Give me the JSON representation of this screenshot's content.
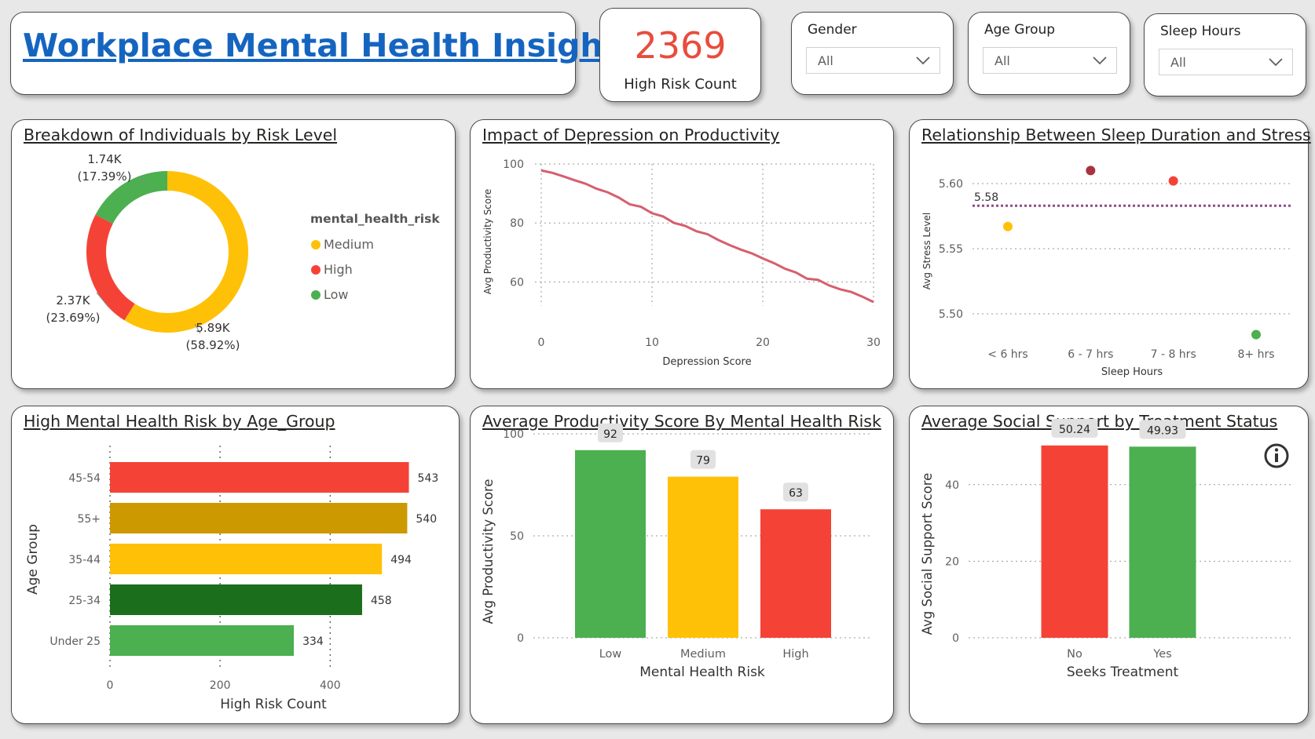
{
  "header": {
    "title": "Workplace Mental Health Insights"
  },
  "kpi": {
    "value": "2369",
    "label": "High Risk Count",
    "color": "#e84c3d"
  },
  "filters": [
    {
      "label": "Gender",
      "value": "All"
    },
    {
      "label": "Age Group",
      "value": "All"
    },
    {
      "label": "Sleep Hours",
      "value": "All"
    }
  ],
  "colors": {
    "low": "#4caf50",
    "medium": "#ffc107",
    "high": "#f44336",
    "dark_gold": "#cc9900",
    "dark_green": "#1b6e1b",
    "line": "#d65f6e"
  },
  "chart_data": [
    {
      "id": "donut",
      "type": "pie",
      "title": "Breakdown of Individuals by Risk Level",
      "legend_title": "mental_health_risk",
      "legend": [
        "Medium",
        "High",
        "Low"
      ],
      "slices": [
        {
          "name": "Medium",
          "value": 5890,
          "label": "5.89K",
          "pct": "(58.92%)",
          "color": "#ffc107"
        },
        {
          "name": "High",
          "value": 2370,
          "label": "2.37K",
          "pct": "(23.69%)",
          "color": "#f44336"
        },
        {
          "name": "Low",
          "value": 1740,
          "label": "1.74K",
          "pct": "(17.39%)",
          "color": "#4caf50"
        }
      ]
    },
    {
      "id": "line",
      "type": "line",
      "title": "Impact of Depression on Productivity",
      "xlabel": "Depression Score",
      "ylabel": "Avg Productivity Score",
      "xlim": [
        0,
        30
      ],
      "ylim": [
        50,
        100
      ],
      "xticks": [
        "0",
        "10",
        "20",
        "30"
      ],
      "yticks": [
        "60",
        "80",
        "100"
      ],
      "x": [
        0,
        1,
        2,
        3,
        4,
        5,
        6,
        7,
        8,
        9,
        10,
        11,
        12,
        13,
        14,
        15,
        16,
        17,
        18,
        19,
        20,
        21,
        22,
        23,
        24,
        25,
        26,
        27,
        28,
        29,
        30
      ],
      "y": [
        97.8,
        97,
        95.8,
        94.5,
        93.3,
        91.6,
        90.4,
        88.6,
        86.3,
        85.5,
        83.3,
        82.2,
        80,
        79,
        77.2,
        76.2,
        74.2,
        72.5,
        71,
        69.7,
        68,
        66.4,
        64.5,
        63.2,
        61.1,
        60.7,
        58.8,
        57.5,
        56.6,
        55,
        53.2
      ]
    },
    {
      "id": "scatter",
      "type": "scatter",
      "title": "Relationship Between Sleep Duration and Stress",
      "xlabel": "Sleep Hours",
      "ylabel": "Avg Stress Level",
      "categories": [
        "< 6 hrs",
        "6 - 7 hrs",
        "7 - 8 hrs",
        "8+ hrs"
      ],
      "values": [
        5.567,
        5.61,
        5.602,
        5.484
      ],
      "point_colors": [
        "#ffc107",
        "#a8333f",
        "#f44336",
        "#4caf50"
      ],
      "ylim": [
        5.47,
        5.625
      ],
      "yticks": [
        "5.50",
        "5.55",
        "5.60"
      ],
      "reference_line": 5.583,
      "reference_label": "5.58"
    },
    {
      "id": "hbar",
      "type": "bar",
      "title": "High Mental Health Risk by Age_Group",
      "xlabel": "High Risk Count",
      "ylabel": "Age Group",
      "categories": [
        "45-54",
        "55+",
        "35-44",
        "25-34",
        "Under 25"
      ],
      "values": [
        543,
        540,
        494,
        458,
        334
      ],
      "bar_colors": [
        "#f44336",
        "#cc9900",
        "#ffc107",
        "#1b6e1b",
        "#4caf50"
      ],
      "xlim": [
        0,
        600
      ],
      "xticks": [
        "0",
        "200",
        "400"
      ]
    },
    {
      "id": "vbar1",
      "type": "bar",
      "title": "Average Productivity Score By Mental Health Risk",
      "xlabel": "Mental Health Risk",
      "ylabel": "Avg Productivity Score",
      "categories": [
        "Low",
        "Medium",
        "High"
      ],
      "values": [
        92,
        79,
        63
      ],
      "bar_colors": [
        "#4caf50",
        "#ffc107",
        "#f44336"
      ],
      "ylim": [
        0,
        100
      ],
      "yticks": [
        "0",
        "50",
        "100"
      ]
    },
    {
      "id": "vbar2",
      "type": "bar",
      "title": "Average Social Support by Treatment Status",
      "xlabel": "Seeks Treatment",
      "ylabel": "Avg Social Support Score",
      "categories": [
        "No",
        "Yes"
      ],
      "values": [
        50.24,
        49.93
      ],
      "labels": [
        "50.24",
        "49.93"
      ],
      "bar_colors": [
        "#f44336",
        "#4caf50"
      ],
      "ylim": [
        0,
        55
      ],
      "yticks": [
        "0",
        "20",
        "40"
      ]
    }
  ]
}
